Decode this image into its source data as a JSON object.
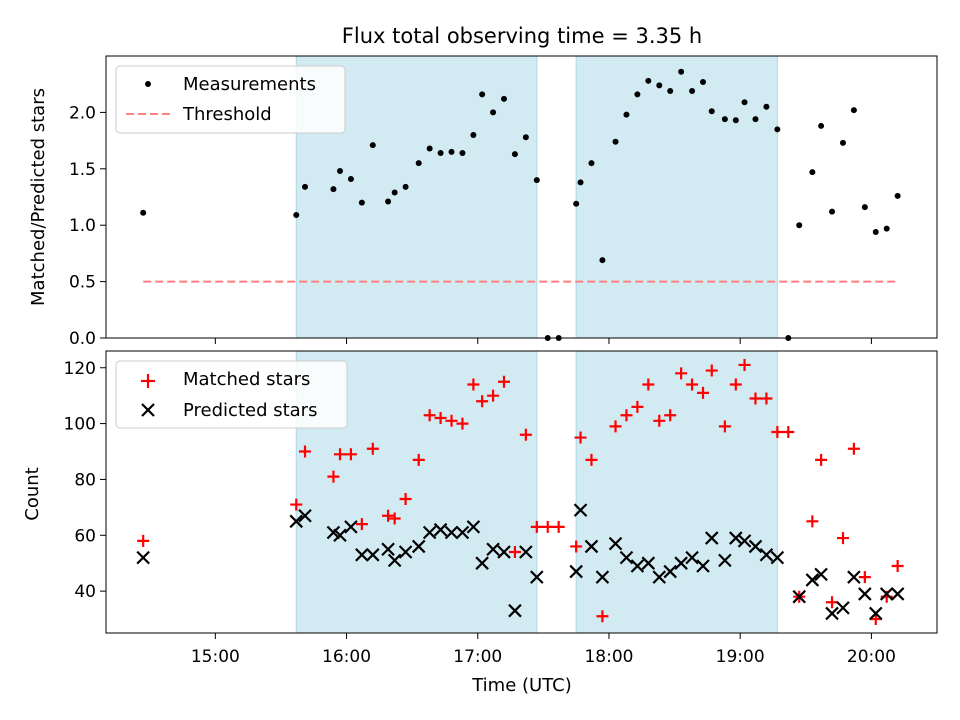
{
  "title": "Flux total observing time = 3.35 h",
  "xlabel": "Time (UTC)",
  "x_ticks": [
    "15:00",
    "16:00",
    "17:00",
    "18:00",
    "19:00",
    "20:00"
  ],
  "colors": {
    "shade": "#add8e6",
    "measurement": "#000000",
    "threshold": "#ff7f7f",
    "matched": "#ff0000",
    "predicted": "#000000"
  },
  "chart_data": [
    {
      "type": "scatter",
      "ylabel": "Matched/Predicted stars",
      "xlim": [
        "14:10",
        "20:30"
      ],
      "ylim": [
        0,
        2.5
      ],
      "y_ticks": [
        "0.0",
        "0.5",
        "1.0",
        "1.5",
        "2.0"
      ],
      "shaded_spans": [
        [
          "15:37",
          "17:27"
        ],
        [
          "17:45",
          "19:17"
        ]
      ],
      "legend": {
        "placement": "upper-left",
        "entries": [
          "Measurements",
          "Threshold"
        ]
      },
      "threshold": {
        "name": "Threshold",
        "y": 0.5,
        "x_start": "14:27",
        "x_end": "20:12",
        "style": "dashed"
      },
      "series": [
        {
          "name": "Measurements",
          "marker": "dot",
          "points": [
            [
              "14:27",
              1.11
            ],
            [
              "15:37",
              1.09
            ],
            [
              "15:41",
              1.34
            ],
            [
              "15:54",
              1.32
            ],
            [
              "15:57",
              1.48
            ],
            [
              "16:02",
              1.41
            ],
            [
              "16:07",
              1.2
            ],
            [
              "16:12",
              1.71
            ],
            [
              "16:19",
              1.21
            ],
            [
              "16:22",
              1.29
            ],
            [
              "16:27",
              1.34
            ],
            [
              "16:33",
              1.55
            ],
            [
              "16:38",
              1.68
            ],
            [
              "16:43",
              1.64
            ],
            [
              "16:48",
              1.65
            ],
            [
              "16:53",
              1.64
            ],
            [
              "16:58",
              1.8
            ],
            [
              "17:02",
              2.16
            ],
            [
              "17:07",
              2.0
            ],
            [
              "17:12",
              2.12
            ],
            [
              "17:17",
              1.63
            ],
            [
              "17:22",
              1.78
            ],
            [
              "17:27",
              1.4
            ],
            [
              "17:32",
              0.0
            ],
            [
              "17:37",
              0.0
            ],
            [
              "17:45",
              1.19
            ],
            [
              "17:47",
              1.38
            ],
            [
              "17:52",
              1.55
            ],
            [
              "17:57",
              0.69
            ],
            [
              "18:03",
              1.74
            ],
            [
              "18:08",
              1.98
            ],
            [
              "18:13",
              2.16
            ],
            [
              "18:18",
              2.28
            ],
            [
              "18:23",
              2.24
            ],
            [
              "18:28",
              2.19
            ],
            [
              "18:33",
              2.36
            ],
            [
              "18:38",
              2.19
            ],
            [
              "18:43",
              2.27
            ],
            [
              "18:47",
              2.01
            ],
            [
              "18:53",
              1.94
            ],
            [
              "18:58",
              1.93
            ],
            [
              "19:02",
              2.09
            ],
            [
              "19:07",
              1.94
            ],
            [
              "19:12",
              2.05
            ],
            [
              "19:17",
              1.85
            ],
            [
              "19:22",
              0.0
            ],
            [
              "19:27",
              1.0
            ],
            [
              "19:33",
              1.47
            ],
            [
              "19:37",
              1.88
            ],
            [
              "19:42",
              1.12
            ],
            [
              "19:47",
              1.73
            ],
            [
              "19:52",
              2.02
            ],
            [
              "19:57",
              1.16
            ],
            [
              "20:02",
              0.94
            ],
            [
              "20:07",
              0.97
            ],
            [
              "20:12",
              1.26
            ]
          ]
        }
      ]
    },
    {
      "type": "scatter",
      "ylabel": "Count",
      "xlim": [
        "14:10",
        "20:30"
      ],
      "ylim": [
        25,
        126
      ],
      "y_ticks": [
        "40",
        "60",
        "80",
        "100",
        "120"
      ],
      "shaded_spans": [
        [
          "15:37",
          "17:27"
        ],
        [
          "17:45",
          "19:17"
        ]
      ],
      "legend": {
        "placement": "upper-left",
        "entries": [
          "Matched stars",
          "Predicted stars"
        ]
      },
      "series": [
        {
          "name": "Matched stars",
          "marker": "plus",
          "points": [
            [
              "14:27",
              58
            ],
            [
              "15:37",
              71
            ],
            [
              "15:41",
              90
            ],
            [
              "15:54",
              81
            ],
            [
              "15:57",
              89
            ],
            [
              "16:02",
              89
            ],
            [
              "16:07",
              64
            ],
            [
              "16:12",
              91
            ],
            [
              "16:19",
              67
            ],
            [
              "16:22",
              66
            ],
            [
              "16:27",
              73
            ],
            [
              "16:33",
              87
            ],
            [
              "16:38",
              103
            ],
            [
              "16:43",
              102
            ],
            [
              "16:48",
              101
            ],
            [
              "16:53",
              100
            ],
            [
              "16:58",
              114
            ],
            [
              "17:02",
              108
            ],
            [
              "17:07",
              110
            ],
            [
              "17:12",
              115
            ],
            [
              "17:17",
              54
            ],
            [
              "17:22",
              96
            ],
            [
              "17:27",
              63
            ],
            [
              "17:32",
              63
            ],
            [
              "17:37",
              63
            ],
            [
              "17:45",
              56
            ],
            [
              "17:47",
              95
            ],
            [
              "17:52",
              87
            ],
            [
              "17:57",
              31
            ],
            [
              "18:03",
              99
            ],
            [
              "18:08",
              103
            ],
            [
              "18:13",
              106
            ],
            [
              "18:18",
              114
            ],
            [
              "18:23",
              101
            ],
            [
              "18:28",
              103
            ],
            [
              "18:33",
              118
            ],
            [
              "18:38",
              114
            ],
            [
              "18:43",
              111
            ],
            [
              "18:47",
              119
            ],
            [
              "18:53",
              99
            ],
            [
              "18:58",
              114
            ],
            [
              "19:02",
              121
            ],
            [
              "19:07",
              109
            ],
            [
              "19:12",
              109
            ],
            [
              "19:17",
              97
            ],
            [
              "19:22",
              97
            ],
            [
              "19:27",
              38
            ],
            [
              "19:33",
              65
            ],
            [
              "19:37",
              87
            ],
            [
              "19:42",
              36
            ],
            [
              "19:47",
              59
            ],
            [
              "19:52",
              91
            ],
            [
              "19:57",
              45
            ],
            [
              "20:02",
              30
            ],
            [
              "20:07",
              38
            ],
            [
              "20:12",
              49
            ]
          ]
        },
        {
          "name": "Predicted stars",
          "marker": "x",
          "points": [
            [
              "14:27",
              52
            ],
            [
              "15:37",
              65
            ],
            [
              "15:41",
              67
            ],
            [
              "15:54",
              61
            ],
            [
              "15:57",
              60
            ],
            [
              "16:02",
              63
            ],
            [
              "16:07",
              53
            ],
            [
              "16:12",
              53
            ],
            [
              "16:19",
              55
            ],
            [
              "16:22",
              51
            ],
            [
              "16:27",
              54
            ],
            [
              "16:33",
              56
            ],
            [
              "16:38",
              61
            ],
            [
              "16:43",
              62
            ],
            [
              "16:48",
              61
            ],
            [
              "16:53",
              61
            ],
            [
              "16:58",
              63
            ],
            [
              "17:02",
              50
            ],
            [
              "17:07",
              55
            ],
            [
              "17:12",
              54
            ],
            [
              "17:17",
              33
            ],
            [
              "17:22",
              54
            ],
            [
              "17:27",
              45
            ],
            [
              "17:45",
              47
            ],
            [
              "17:47",
              69
            ],
            [
              "17:52",
              56
            ],
            [
              "17:57",
              45
            ],
            [
              "18:03",
              57
            ],
            [
              "18:08",
              52
            ],
            [
              "18:13",
              49
            ],
            [
              "18:18",
              50
            ],
            [
              "18:23",
              45
            ],
            [
              "18:28",
              47
            ],
            [
              "18:33",
              50
            ],
            [
              "18:38",
              52
            ],
            [
              "18:43",
              49
            ],
            [
              "18:47",
              59
            ],
            [
              "18:53",
              51
            ],
            [
              "18:58",
              59
            ],
            [
              "19:02",
              58
            ],
            [
              "19:07",
              56
            ],
            [
              "19:12",
              53
            ],
            [
              "19:17",
              52
            ],
            [
              "19:27",
              38
            ],
            [
              "19:33",
              44
            ],
            [
              "19:37",
              46
            ],
            [
              "19:42",
              32
            ],
            [
              "19:47",
              34
            ],
            [
              "19:52",
              45
            ],
            [
              "19:57",
              39
            ],
            [
              "20:02",
              32
            ],
            [
              "20:07",
              39
            ],
            [
              "20:12",
              39
            ]
          ]
        }
      ]
    }
  ]
}
